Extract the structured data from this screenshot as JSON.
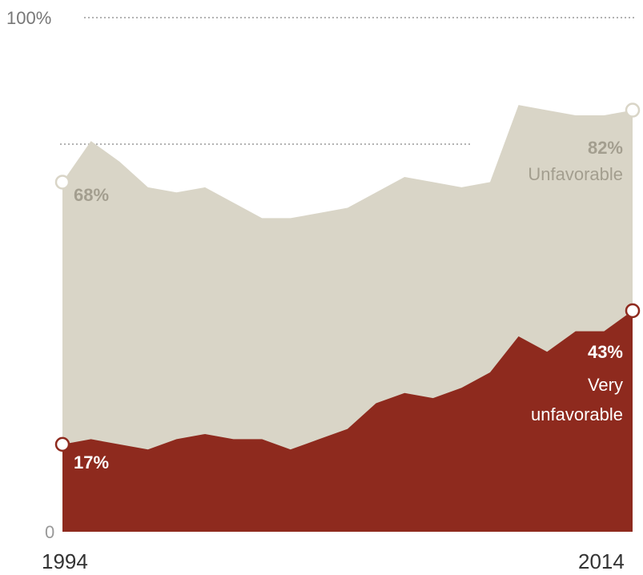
{
  "chart_data": {
    "type": "area",
    "x": [
      1994,
      1995,
      1996,
      1997,
      1998,
      1999,
      2000,
      2001,
      2002,
      2003,
      2004,
      2005,
      2006,
      2007,
      2008,
      2009,
      2010,
      2011,
      2012,
      2013,
      2014
    ],
    "series": [
      {
        "name": "Unfavorable",
        "values": [
          68,
          76,
          72,
          67,
          66,
          67,
          64,
          61,
          61,
          62,
          63,
          66,
          69,
          68,
          67,
          68,
          83,
          82,
          81,
          81,
          82
        ]
      },
      {
        "name": "Very unfavorable",
        "values": [
          17,
          18,
          17,
          16,
          18,
          19,
          18,
          18,
          16,
          18,
          20,
          25,
          27,
          26,
          28,
          31,
          38,
          35,
          39,
          39,
          43
        ]
      }
    ],
    "ylim": [
      0,
      100
    ],
    "yticks": [
      "0",
      "100%"
    ],
    "xticks": [
      "1994",
      "2014"
    ],
    "annotations": {
      "unfavorable_start": "68%",
      "unfavorable_end": "82%",
      "unfavorable_label": "Unfavorable",
      "very_start": "17%",
      "very_end": "43%",
      "very_label_line1": "Very",
      "very_label_line2": "unfavorable"
    },
    "colors": {
      "unfavorable": "#d9d5c7",
      "very_unfavorable": "#8e2a1e",
      "unfavorable_text": "#a39e8f",
      "very_text_light": "#ffffff",
      "axis_text": "#777777",
      "gridline": "#999999"
    }
  }
}
